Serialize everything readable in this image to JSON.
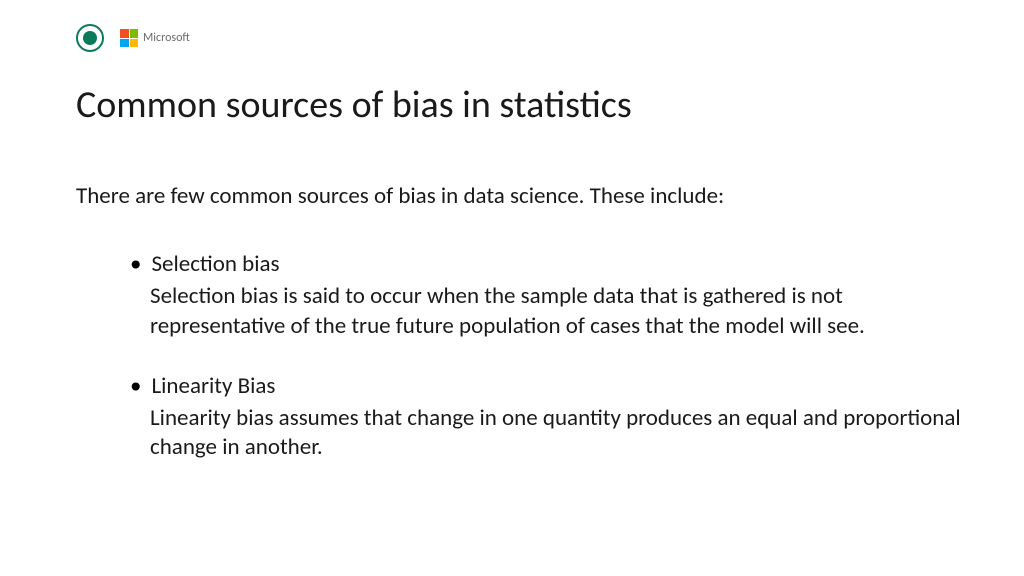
{
  "logos": {
    "seal_color": "#0a7a5a",
    "ms_colors": {
      "tl": "#f25022",
      "tr": "#7fba00",
      "bl": "#00a4ef",
      "br": "#ffb900"
    },
    "ms_label": "Microsoft"
  },
  "title": "Common sources of bias in statistics",
  "intro": "There are few common sources of bias in data science. These include:",
  "items": [
    {
      "head": "Selection bias",
      "desc": "Selection bias is said to occur when the sample data that is gathered is not representative of the true future population of cases that the model will see."
    },
    {
      "head": "Linearity Bias",
      "desc": "Linearity bias assumes that change in one quantity produces an equal and proportional change in another."
    }
  ],
  "colors": {
    "background": "#ffffff",
    "text": "#1a1a1a"
  },
  "typography": {
    "title_fontsize": 38,
    "body_fontsize": 23,
    "font_family": "Calibri"
  }
}
